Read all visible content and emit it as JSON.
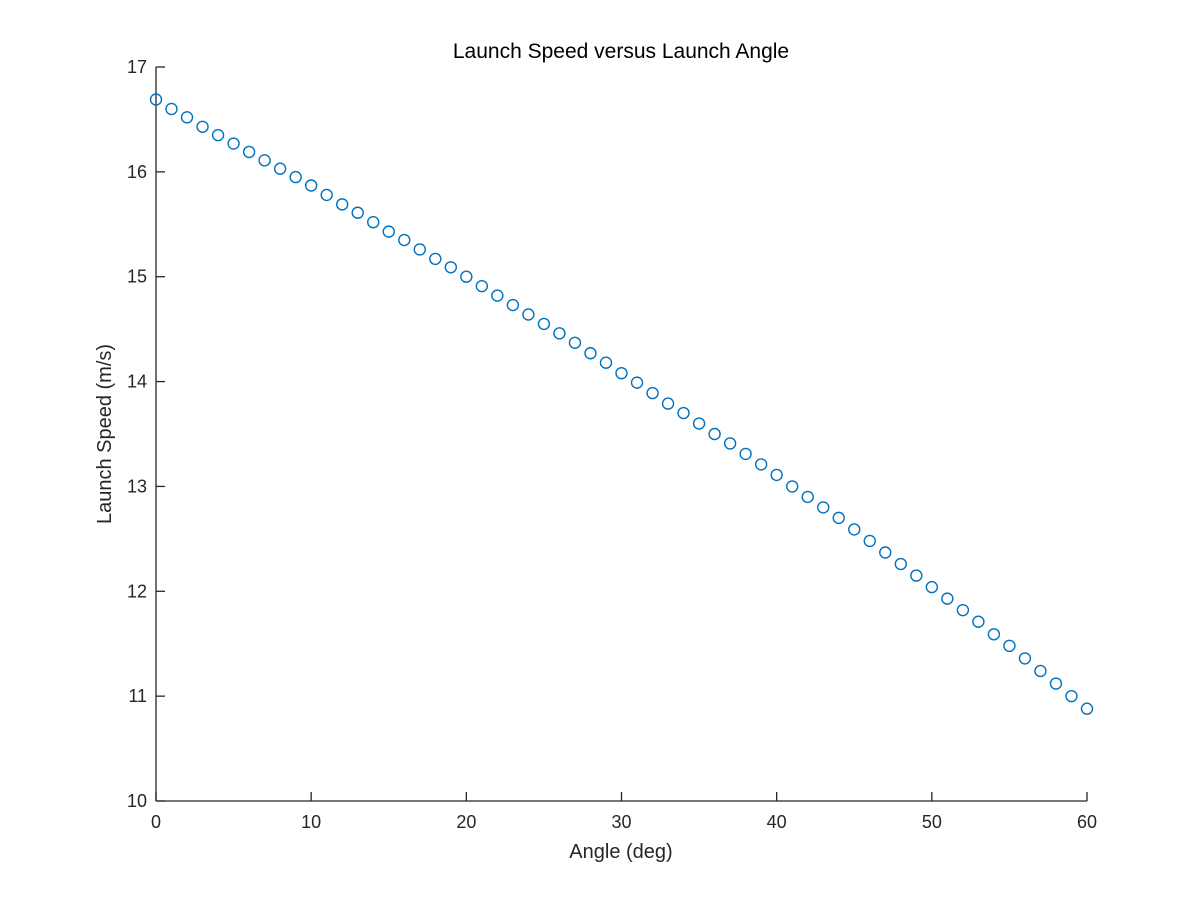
{
  "chart_data": {
    "type": "scatter",
    "title": "Launch Speed versus Launch Angle",
    "xlabel": "Angle (deg)",
    "ylabel": "Launch Speed (m/s)",
    "xlim": [
      0,
      60
    ],
    "ylim": [
      10,
      17
    ],
    "xticks": [
      0,
      10,
      20,
      30,
      40,
      50,
      60
    ],
    "yticks": [
      10,
      11,
      12,
      13,
      14,
      15,
      16,
      17
    ],
    "grid": false,
    "legend": "none",
    "marker": "circle",
    "color": "#0072BD",
    "series": [
      {
        "x": [
          0,
          1,
          2,
          3,
          4,
          5,
          6,
          7,
          8,
          9,
          10,
          11,
          12,
          13,
          14,
          15,
          16,
          17,
          18,
          19,
          20,
          21,
          22,
          23,
          24,
          25,
          26,
          27,
          28,
          29,
          30,
          31,
          32,
          33,
          34,
          35,
          36,
          37,
          38,
          39,
          40,
          41,
          42,
          43,
          44,
          45,
          46,
          47,
          48,
          49,
          50,
          51,
          52,
          53,
          54,
          55,
          56,
          57,
          58,
          59,
          60
        ],
        "y": [
          16.69,
          16.6,
          16.52,
          16.43,
          16.35,
          16.27,
          16.19,
          16.11,
          16.03,
          15.95,
          15.87,
          15.78,
          15.69,
          15.61,
          15.52,
          15.43,
          15.35,
          15.26,
          15.17,
          15.09,
          15.0,
          14.91,
          14.82,
          14.73,
          14.64,
          14.55,
          14.46,
          14.37,
          14.27,
          14.18,
          14.08,
          13.99,
          13.89,
          13.79,
          13.7,
          13.6,
          13.5,
          13.41,
          13.31,
          13.21,
          13.11,
          13.0,
          12.9,
          12.8,
          12.7,
          12.59,
          12.48,
          12.37,
          12.26,
          12.15,
          12.04,
          11.93,
          11.82,
          11.71,
          11.59,
          11.48,
          11.36,
          11.24,
          11.12,
          11.0,
          10.88
        ]
      }
    ]
  }
}
